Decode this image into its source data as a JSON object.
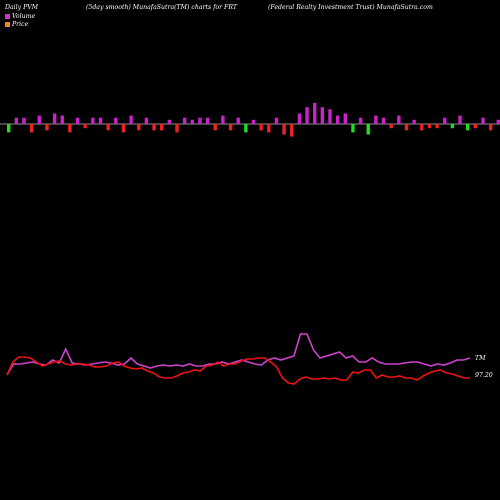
{
  "header": {
    "left": "Daily PVM",
    "center": "(5day smooth) MunafaSutra(TM) charts for FRT",
    "right": "(Federal Realty Investment Trust) MunafaSutra.com"
  },
  "legend": [
    {
      "label": "Volume",
      "color": "#cc33cc"
    },
    {
      "label": "Price",
      "color": "#ee8822"
    }
  ],
  "colors": {
    "positive": "#cc22cc",
    "negative_red": "#ee2222",
    "negative_green": "#22dd22",
    "baseline": "#bbbbbb",
    "pvm_line": "#cc44cc",
    "price_line": "#ee1111",
    "label": "#ffffff"
  },
  "chart_data": [
    {
      "type": "bar",
      "series": [
        {
          "values": [
            -4,
            3,
            3,
            -4,
            4,
            -3,
            5,
            4,
            -4,
            3,
            -2,
            3,
            3,
            -3,
            3,
            -4,
            4,
            -3,
            3,
            -3,
            -3,
            2,
            -4,
            3,
            2,
            3,
            3,
            -3,
            4,
            -3,
            3,
            -4,
            2,
            -3,
            -4,
            3,
            -5,
            -6,
            5,
            8,
            10,
            8,
            7,
            4,
            5,
            -4,
            3,
            -5,
            4,
            3,
            -2,
            4,
            -3,
            2,
            -3,
            -2,
            -2,
            3,
            -2,
            4,
            -3,
            -2,
            3,
            -3,
            2,
            3,
            -3,
            -2,
            3
          ],
          "colors": [
            "g",
            "m",
            "m",
            "r",
            "m",
            "r",
            "m",
            "m",
            "r",
            "m",
            "r",
            "m",
            "m",
            "r",
            "m",
            "r",
            "m",
            "r",
            "m",
            "r",
            "r",
            "m",
            "r",
            "m",
            "m",
            "m",
            "m",
            "r",
            "m",
            "r",
            "m",
            "g",
            "m",
            "r",
            "r",
            "m",
            "r",
            "r",
            "m",
            "m",
            "m",
            "m",
            "m",
            "m",
            "m",
            "g",
            "m",
            "g",
            "m",
            "m",
            "r",
            "m",
            "r",
            "m",
            "r",
            "r",
            "r",
            "m",
            "g",
            "m",
            "g",
            "r",
            "m",
            "r",
            "m",
            "m",
            "g",
            "r",
            "m"
          ]
        }
      ]
    },
    {
      "type": "line",
      "series": [
        {
          "values": [
            0,
            35,
            38,
            38,
            38,
            37,
            34,
            31,
            38,
            37,
            37,
            41,
            39,
            41,
            40,
            37,
            41,
            40,
            38,
            37,
            36,
            41,
            38,
            36,
            36,
            38,
            38,
            36,
            39,
            40,
            40,
            37,
            43,
            45,
            44,
            45,
            43,
            36,
            43,
            44,
            45,
            46,
            47,
            62,
            62,
            45,
            37,
            38,
            38,
            39,
            42,
            42,
            39,
            40,
            40,
            39,
            40,
            42,
            42,
            38,
            43,
            41,
            41,
            41,
            42,
            43,
            45,
            46,
            45,
            46,
            48,
            48,
            47,
            48,
            50,
            50,
            51,
            52,
            52,
            53,
            54,
            55,
            56,
            57,
            56,
            55,
            57,
            58,
            59,
            60,
            60,
            61,
            62,
            64,
            64,
            65,
            65,
            66,
            66,
            67,
            67,
            68,
            68,
            69,
            69,
            70,
            70,
            71,
            71,
            72,
            72,
            73,
            73,
            74,
            74,
            75,
            75,
            76,
            76,
            77,
            77,
            78,
            78,
            78,
            78,
            78,
            78,
            78,
            78,
            78,
            78,
            78,
            78,
            78,
            78,
            78,
            78,
            78,
            78,
            78,
            78,
            78,
            78,
            78,
            78,
            78,
            78,
            78,
            78
          ]
        },
        {
          "values": [
            5,
            13,
            17,
            18,
            17,
            17,
            13,
            15,
            19,
            18,
            20,
            19,
            20,
            16,
            16,
            16,
            19,
            20,
            19,
            18,
            22,
            24,
            22,
            23,
            19,
            21,
            23,
            24,
            21,
            21,
            21,
            20,
            20,
            21,
            21,
            20,
            19,
            23,
            19,
            18,
            19,
            18,
            17,
            15,
            16,
            16,
            15,
            17,
            16,
            14,
            12,
            12,
            12,
            13,
            12,
            12,
            11,
            11,
            13,
            12,
            12,
            13,
            12,
            11,
            12,
            12,
            13,
            13,
            12,
            12,
            11,
            11
          ]
        }
      ],
      "price_label": "97.20",
      "pvm_label": "TM"
    }
  ]
}
